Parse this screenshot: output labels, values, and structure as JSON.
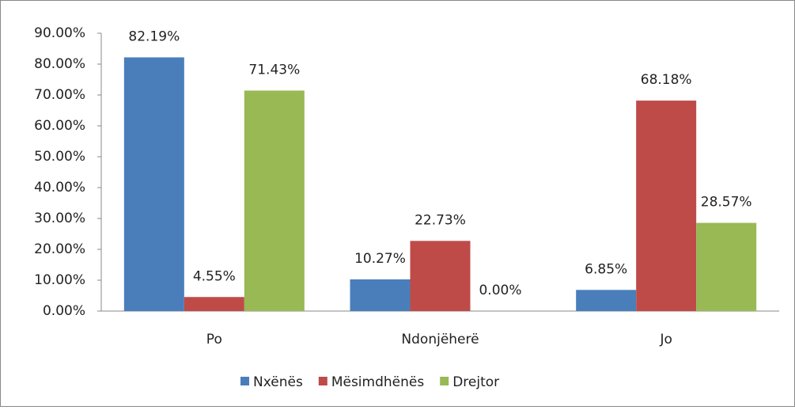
{
  "chart_data": {
    "type": "bar",
    "categories": [
      "Po",
      "Ndonjëherë",
      "Jo"
    ],
    "series": [
      {
        "name": "Nxënës",
        "color": "#4a7ebb",
        "values": [
          82.19,
          10.27,
          6.85
        ],
        "value_labels": [
          "82.19%",
          "10.27%",
          "6.85%"
        ]
      },
      {
        "name": "Mësimdhënës",
        "color": "#be4b48",
        "values": [
          4.55,
          22.73,
          68.18
        ],
        "value_labels": [
          "4.55%",
          "22.73%",
          "68.18%"
        ]
      },
      {
        "name": "Drejtor",
        "color": "#98b954",
        "values": [
          71.43,
          0,
          28.57
        ],
        "value_labels": [
          "71.43%",
          "0.00%",
          "28.57%"
        ]
      }
    ],
    "ylim": [
      0,
      90
    ],
    "yticks": [
      {
        "value": 0,
        "label": "0.00%"
      },
      {
        "value": 10,
        "label": "10.00%"
      },
      {
        "value": 20,
        "label": "20.00%"
      },
      {
        "value": 30,
        "label": "30.00%"
      },
      {
        "value": 40,
        "label": "40.00%"
      },
      {
        "value": 50,
        "label": "50.00%"
      },
      {
        "value": 60,
        "label": "60.00%"
      },
      {
        "value": 70,
        "label": "70.00%"
      },
      {
        "value": 80,
        "label": "80.00%"
      },
      {
        "value": 90,
        "label": "90.00%"
      }
    ],
    "grid": false,
    "legend": "bottom"
  }
}
